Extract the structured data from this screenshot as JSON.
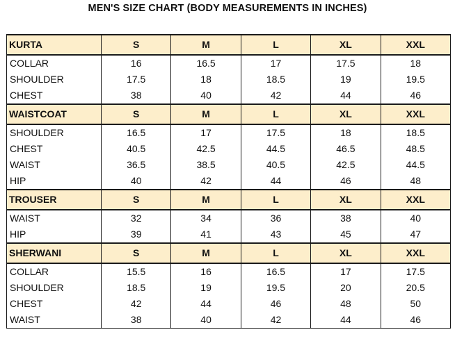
{
  "title": "MEN'S SIZE CHART (BODY MEASUREMENTS IN INCHES)",
  "sections": [
    {
      "name": "KURTA",
      "sizes": [
        "S",
        "M",
        "L",
        "XL",
        "XXL"
      ],
      "rows": [
        {
          "measure": "COLLAR",
          "values": [
            "16",
            "16.5",
            "17",
            "17.5",
            "18"
          ]
        },
        {
          "measure": "SHOULDER",
          "values": [
            "17.5",
            "18",
            "18.5",
            "19",
            "19.5"
          ]
        },
        {
          "measure": "CHEST",
          "values": [
            "38",
            "40",
            "42",
            "44",
            "46"
          ]
        }
      ]
    },
    {
      "name": "WAISTCOAT",
      "sizes": [
        "S",
        "M",
        "L",
        "XL",
        "XXL"
      ],
      "rows": [
        {
          "measure": "SHOULDER",
          "values": [
            "16.5",
            "17",
            "17.5",
            "18",
            "18.5"
          ]
        },
        {
          "measure": "CHEST",
          "values": [
            "40.5",
            "42.5",
            "44.5",
            "46.5",
            "48.5"
          ]
        },
        {
          "measure": "WAIST",
          "values": [
            "36.5",
            "38.5",
            "40.5",
            "42.5",
            "44.5"
          ]
        },
        {
          "measure": "HIP",
          "values": [
            "40",
            "42",
            "44",
            "46",
            "48"
          ]
        }
      ]
    },
    {
      "name": "TROUSER",
      "sizes": [
        "S",
        "M",
        "L",
        "XL",
        "XXL"
      ],
      "rows": [
        {
          "measure": "WAIST",
          "values": [
            "32",
            "34",
            "36",
            "38",
            "40"
          ]
        },
        {
          "measure": "HIP",
          "values": [
            "39",
            "41",
            "43",
            "45",
            "47"
          ]
        }
      ]
    },
    {
      "name": "SHERWANI",
      "sizes": [
        "S",
        "M",
        "L",
        "XL",
        "XXL"
      ],
      "rows": [
        {
          "measure": "COLLAR",
          "values": [
            "15.5",
            "16",
            "16.5",
            "17",
            "17.5"
          ]
        },
        {
          "measure": "SHOULDER",
          "values": [
            "18.5",
            "19",
            "19.5",
            "20",
            "20.5"
          ]
        },
        {
          "measure": "CHEST",
          "values": [
            "42",
            "44",
            "46",
            "48",
            "50"
          ]
        },
        {
          "measure": "WAIST",
          "values": [
            "38",
            "40",
            "42",
            "44",
            "46"
          ]
        }
      ]
    }
  ],
  "colors": {
    "header_fill": "#fdeecb",
    "border": "#1a1a1a",
    "text": "#111111"
  }
}
